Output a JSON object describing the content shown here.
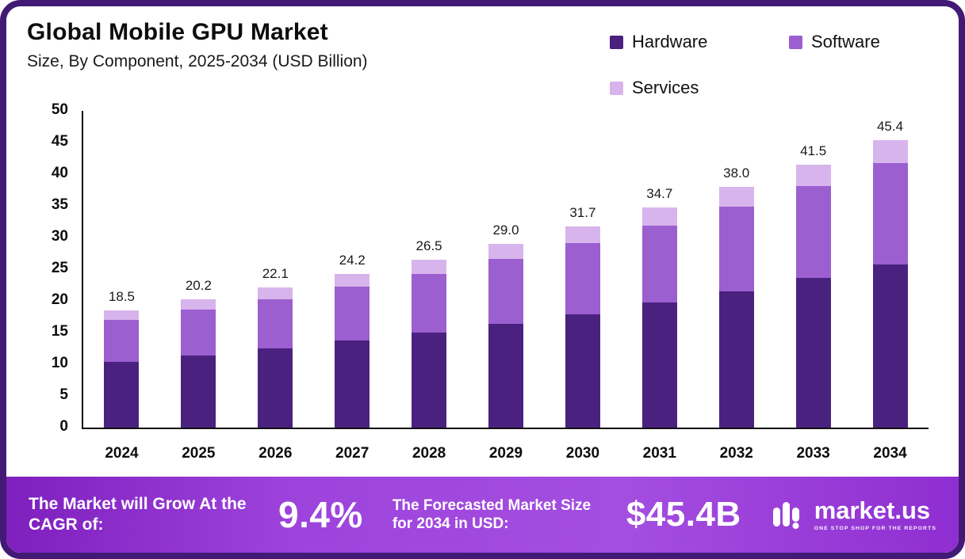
{
  "chart_data": {
    "type": "bar",
    "stacked": true,
    "title": "Global Mobile GPU Market",
    "subtitle": "Size, By Component, 2025-2034 (USD Billion)",
    "categories": [
      "2024",
      "2025",
      "2026",
      "2027",
      "2028",
      "2029",
      "2030",
      "2031",
      "2032",
      "2033",
      "2034"
    ],
    "series": [
      {
        "name": "Hardware",
        "color": "#4A217F",
        "values": [
          10.4,
          11.4,
          12.5,
          13.7,
          15.0,
          16.4,
          17.9,
          19.7,
          21.5,
          23.6,
          25.8
        ]
      },
      {
        "name": "Software",
        "color": "#9B5FD0",
        "values": [
          6.6,
          7.2,
          7.8,
          8.5,
          9.3,
          10.2,
          11.2,
          12.2,
          13.4,
          14.5,
          15.9
        ]
      },
      {
        "name": "Services",
        "color": "#D8B4EC",
        "values": [
          1.5,
          1.6,
          1.8,
          2.0,
          2.2,
          2.4,
          2.6,
          2.8,
          3.1,
          3.4,
          3.7
        ]
      }
    ],
    "totals": [
      "18.5",
      "20.2",
      "22.1",
      "24.2",
      "26.5",
      "29.0",
      "31.7",
      "34.7",
      "38.0",
      "41.5",
      "45.4"
    ],
    "ylim": [
      0,
      50
    ],
    "yticks": [
      50,
      45,
      40,
      35,
      30,
      25,
      20,
      15,
      10,
      5,
      0
    ],
    "legend_position": "top-right",
    "grid": false
  },
  "banner": {
    "cagr_label": "The Market will Grow At the CAGR of:",
    "cagr_value": "9.4%",
    "forecast_label": "The Forecasted Market Size for 2034 in USD:",
    "forecast_value": "$45.4B",
    "brand": "market.us",
    "tagline": "ONE STOP SHOP FOR THE REPORTS"
  }
}
